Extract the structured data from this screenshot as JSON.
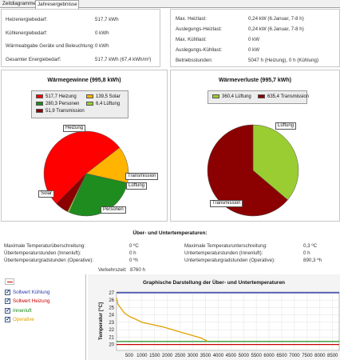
{
  "tabs": [
    {
      "label": "Zeitdiagramme"
    },
    {
      "label": "Jahresergebnisse"
    }
  ],
  "summary_left": [
    {
      "label": "Heizenergiebedarf:",
      "value": "517,7 kWh"
    },
    {
      "label": "Kühlenergiebedarf:",
      "value": "0 kWh"
    },
    {
      "label": "Wärmeabgabe Geräte und Beleuchtung:",
      "value": "0 kWh"
    },
    {
      "label": "Gesamter Energiebedarf:",
      "value": "517,7 kWh (67,4 kWh/m²)"
    }
  ],
  "summary_right": [
    {
      "label": "Max. Heizlast:",
      "value": "0,24 kW (6.Januar, 7-8 h)"
    },
    {
      "label": "Auslegungs-Heizlast:",
      "value": "0,24 kW (6.Januar, 7-8 h)"
    },
    {
      "label": "Max. Kühllast:",
      "value": "0 kW"
    },
    {
      "label": "Auslegungs-Kühllast:",
      "value": "0 kW"
    },
    {
      "label": "Betriebsstunden:",
      "value": "5047 h (Heizung), 0 h (Kühlung)"
    }
  ],
  "colors": {
    "heizung": "#ff0000",
    "solar": "#ffb400",
    "personen": "#1e8c1e",
    "lueftung": "#9acd32",
    "transmission": "#8b0000",
    "sollwert_kuehlung": "#2b3aa8",
    "sollwert_heizung": "#cc0000",
    "innenluft": "#1e8c1e",
    "operative": "#e0a000"
  },
  "chart_data": [
    {
      "type": "pie",
      "title": "Wärmegewinne (995,8 kWh)",
      "legend_entries": [
        "517,7 Heizung",
        "139,5 Solar",
        "280,3 Personen",
        "6,4 Lüftung",
        "51,9 Transmission"
      ],
      "slice_labels": [
        "Heizung",
        "Solar",
        "Personen",
        "Lüftung",
        "Transmission"
      ],
      "values": [
        517.7,
        139.5,
        280.3,
        6.4,
        51.9
      ],
      "colors": [
        "#ff0000",
        "#ffb400",
        "#1e8c1e",
        "#9acd32",
        "#8b0000"
      ]
    },
    {
      "type": "pie",
      "title": "Wärmeverluste (995,7 kWh)",
      "legend_entries": [
        "360,4 Lüftung",
        "635,4 Transmission"
      ],
      "slice_labels": [
        "Lüftung",
        "Transmission"
      ],
      "values": [
        360.4,
        635.4
      ],
      "colors": [
        "#9acd32",
        "#8b0000"
      ]
    },
    {
      "type": "line",
      "title": "Graphische Darstellung der Über- und Untertemperaturen",
      "ylabel": "Temperatur [°C]",
      "xlabel": "",
      "ylim": [
        19.2,
        27.1
      ],
      "xlim": [
        0,
        8760
      ],
      "yticks": [
        20,
        21,
        22,
        23,
        24,
        25,
        26,
        27
      ],
      "xticks": [
        500,
        1000,
        1500,
        2000,
        2500,
        3000,
        3500,
        4000,
        4500,
        5000,
        5500,
        6000,
        6500,
        7000,
        7500,
        8000,
        8500
      ],
      "series": [
        {
          "name": "Sollwert Kühlung",
          "color": "#2b3aa8",
          "x": [
            0,
            8760
          ],
          "y": [
            27,
            27
          ]
        },
        {
          "name": "Sollwert Heizung",
          "color": "#cc0000",
          "x": [
            0,
            8760
          ],
          "y": [
            20,
            20
          ]
        },
        {
          "name": "Innenluft",
          "color": "#1e8c1e",
          "x": [
            0,
            3500,
            8760
          ],
          "y": [
            20.4,
            20.4,
            20.4
          ]
        },
        {
          "name": "Operative",
          "color": "#e0a000",
          "x": [
            0,
            60,
            150,
            300,
            500,
            700,
            1000,
            1400,
            1800,
            2200,
            2600,
            3000,
            3300,
            3500,
            3600
          ],
          "y": [
            26.3,
            25.4,
            25.0,
            24.3,
            23.8,
            23.5,
            23.0,
            22.7,
            22.4,
            22.0,
            21.6,
            21.2,
            20.9,
            20.6,
            20.4
          ]
        }
      ]
    }
  ],
  "temp_section": {
    "title": "Über- und Untertemperaturen:",
    "left": [
      {
        "label": "Maximale Temperaturüberschreitung:",
        "value": "0 ºC"
      },
      {
        "label": "Übertemperaturstunden (Innenluft):",
        "value": "0 h"
      },
      {
        "label": "Übertemperaturgradstunden (Operative):",
        "value": "0 ºh"
      }
    ],
    "right": [
      {
        "label": "Maximale Temperaturunterschreitung:",
        "value": "0,3 ºC"
      },
      {
        "label": "Untertemperaturstunden (Innenluft):",
        "value": "0 h"
      },
      {
        "label": "Untertemperaturgradstunden (Operative):",
        "value": "890,3 ºh"
      }
    ],
    "verkehrszeit": {
      "label": "Verkehrszeit:",
      "value": "8760 h"
    }
  },
  "sidebar": {
    "items": [
      {
        "label": "Sollwert Kühlung"
      },
      {
        "label": "Sollwert Heizung"
      },
      {
        "label": "Innenluft"
      },
      {
        "label": "Operative"
      }
    ]
  }
}
